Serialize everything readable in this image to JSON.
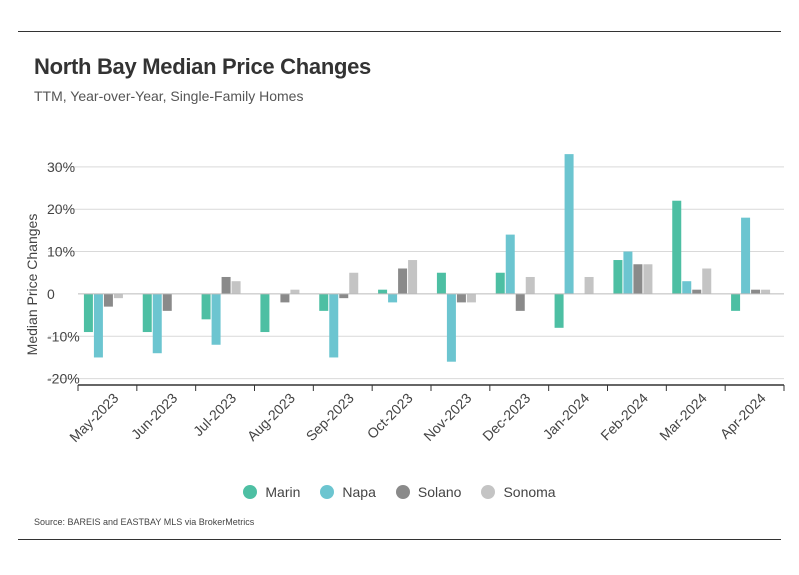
{
  "header": {
    "title": "North Bay Median Price Changes",
    "subtitle": "TTM, Year-over-Year, Single-Family Homes"
  },
  "source": "Source:  BAREIS and EASTBAY MLS via BrokerMetrics",
  "colors": {
    "Marin": "#4dbfa3",
    "Napa": "#6cc5d0",
    "Solano": "#8a8a8a",
    "Sonoma": "#c4c4c4",
    "grid": "#d9d9d9",
    "axis": "#333333"
  },
  "chart_data": {
    "type": "bar",
    "title": "North Bay Median Price Changes",
    "subtitle": "TTM, Year-over-Year, Single-Family Homes",
    "ylabel": "Median Price Changes",
    "xlabel": "",
    "categories": [
      "May-2023",
      "Jun-2023",
      "Jul-2023",
      "Aug-2023",
      "Sep-2023",
      "Oct-2023",
      "Nov-2023",
      "Dec-2023",
      "Jan-2024",
      "Feb-2024",
      "Mar-2024",
      "Apr-2024"
    ],
    "ylim": [
      -20,
      30
    ],
    "ytick_values": [
      30,
      20,
      10,
      0,
      -10,
      -20
    ],
    "ytick_labels": [
      "30%",
      "20%",
      "10%",
      "0",
      "-10%",
      "-20%"
    ],
    "grid": true,
    "legend_position": "bottom",
    "series": [
      {
        "name": "Marin",
        "values": [
          -9,
          -9,
          -6,
          -9,
          -4,
          1,
          5,
          5,
          -8,
          8,
          22,
          -4
        ]
      },
      {
        "name": "Napa",
        "values": [
          -15,
          -14,
          -12,
          null,
          -15,
          -2,
          -16,
          14,
          33,
          10,
          3,
          18
        ]
      },
      {
        "name": "Solano",
        "values": [
          -3,
          -4,
          4,
          -2,
          -1,
          6,
          -2,
          -4,
          null,
          7,
          1,
          1
        ]
      },
      {
        "name": "Sonoma",
        "values": [
          -1,
          null,
          3,
          1,
          5,
          8,
          -2,
          4,
          4,
          7,
          6,
          1
        ]
      }
    ]
  }
}
